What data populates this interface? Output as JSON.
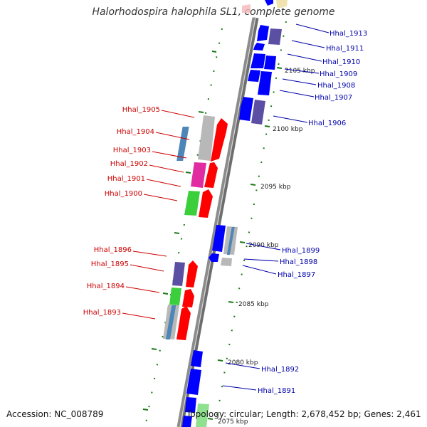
{
  "title": "Halorhodospira halophila SL1, complete genome",
  "footer": {
    "accession": "Accession: NC_008789",
    "topology": "Topology: circular; Length: 2,678,452 bp; Genes: 2,461"
  },
  "colors": {
    "backbone": "#8c8c8c",
    "forward_strand_genes": "#ff0000",
    "reverse_strand_genes": "#0000ff",
    "forward_labels": "#cc0000",
    "reverse_labels": "#0000aa",
    "tick": "#1a7a1a",
    "slate_gene": "#5a4fa3",
    "magenta_gene": "#e02ca0",
    "green_gene": "#3ccf3c",
    "steel_gene": "#4f86b8",
    "gray_gene": "#b8b8b8"
  },
  "scale_labels": [
    "2105 kbp",
    "2100 kbp",
    "2095 kbp",
    "2090 kbp",
    "2085 kbp",
    "2080 kbp",
    "2075 kbp"
  ],
  "forward_genes": [
    "Hhal_1905",
    "Hhal_1904",
    "Hhal_1903",
    "Hhal_1902",
    "Hhal_1901",
    "Hhal_1900",
    "Hhal_1896",
    "Hhal_1895",
    "Hhal_1894",
    "Hhal_1893"
  ],
  "reverse_genes": [
    "Hhal_1913",
    "Hhal_1911",
    "Hhal_1910",
    "Hhal_1909",
    "Hhal_1908",
    "Hhal_1907",
    "Hhal_1906",
    "Hhal_1899",
    "Hhal_1898",
    "Hhal_1897",
    "Hhal_1892",
    "Hhal_1891"
  ]
}
